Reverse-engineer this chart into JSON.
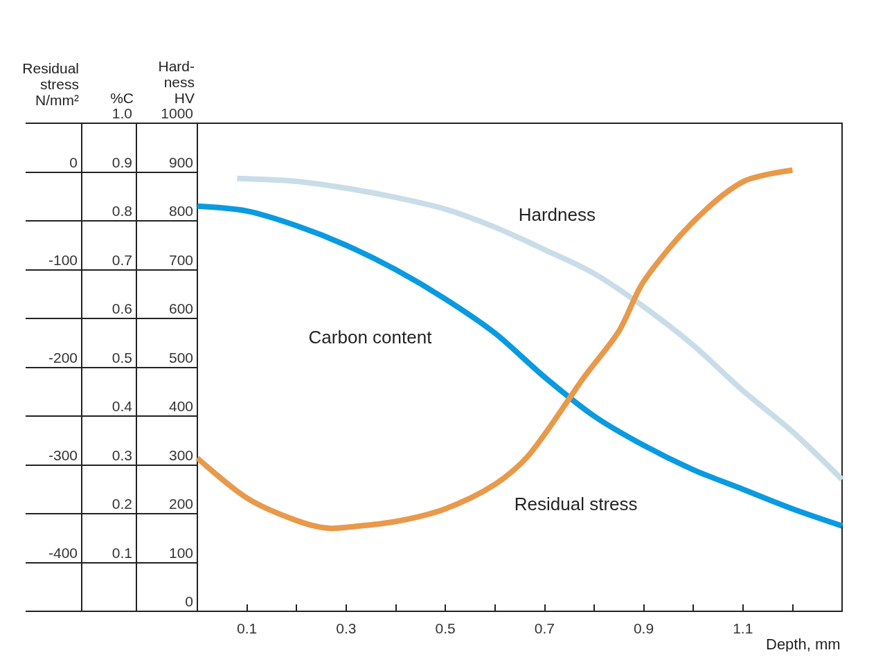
{
  "chart_data": {
    "type": "line",
    "xlabel": "Depth, mm",
    "ylabel": "Hard-\nness\nHV",
    "y2label": "%C",
    "y3label": "Residual\nstress\nN/mm²",
    "xlim": [
      0,
      1.3
    ],
    "xticks": [
      0.1,
      {
        "value": 0.2,
        "label": null
      },
      0.3,
      {
        "value": 0.4,
        "label": null
      },
      0.5,
      {
        "value": 0.6,
        "label": null
      },
      0.7,
      {
        "value": 0.8,
        "label": null
      },
      0.9,
      {
        "value": 1.0,
        "label": null
      },
      1.1,
      {
        "value": 1.2,
        "label": null
      }
    ],
    "ylim": [
      0,
      1000
    ],
    "yticks": [
      0,
      100,
      200,
      300,
      400,
      500,
      600,
      700,
      800,
      900,
      1000
    ],
    "y2lim": [
      0,
      1
    ],
    "y2ticks": [
      {
        "value": 0,
        "label": null
      },
      0.1,
      0.2,
      0.3,
      0.4,
      0.5,
      0.6,
      0.7,
      0.8,
      0.9,
      {
        "value": 1,
        "label": "1.0"
      }
    ],
    "y3lim": [
      -450,
      50
    ],
    "y3ticks": [
      -400,
      -300,
      -200,
      -100,
      0
    ],
    "series": [
      {
        "name": "Hardness",
        "color": "#c9dde8",
        "axis": "y",
        "x": [
          0.08,
          0.2,
          0.3,
          0.4,
          0.5,
          0.6,
          0.7,
          0.8,
          0.9,
          1.0,
          1.1,
          1.2,
          1.3
        ],
        "values": [
          887,
          881,
          867,
          848,
          824,
          787,
          741,
          692,
          624,
          545,
          452,
          368,
          270
        ]
      },
      {
        "name": "Carbon content",
        "color": "#0a9ae0",
        "axis": "y2",
        "x": [
          0,
          0.1,
          0.2,
          0.3,
          0.4,
          0.5,
          0.6,
          0.7,
          0.8,
          0.9,
          1.0,
          1.1,
          1.2,
          1.3
        ],
        "values": [
          0.83,
          0.82,
          0.79,
          0.75,
          0.7,
          0.64,
          0.57,
          0.48,
          0.4,
          0.34,
          0.29,
          0.25,
          0.21,
          0.175
        ]
      },
      {
        "name": "Residual stress",
        "color": "#e8994a",
        "axis": "y3",
        "x": [
          0,
          0.1,
          0.2,
          0.27,
          0.3,
          0.4,
          0.5,
          0.6,
          0.67,
          0.78,
          0.85,
          0.9,
          1.0,
          1.1,
          1.2
        ],
        "values": [
          -293,
          -334,
          -357,
          -365,
          -364,
          -358,
          -345,
          -320,
          -289,
          -210,
          -163,
          -112,
          -51,
          -10,
          2
        ]
      }
    ]
  }
}
